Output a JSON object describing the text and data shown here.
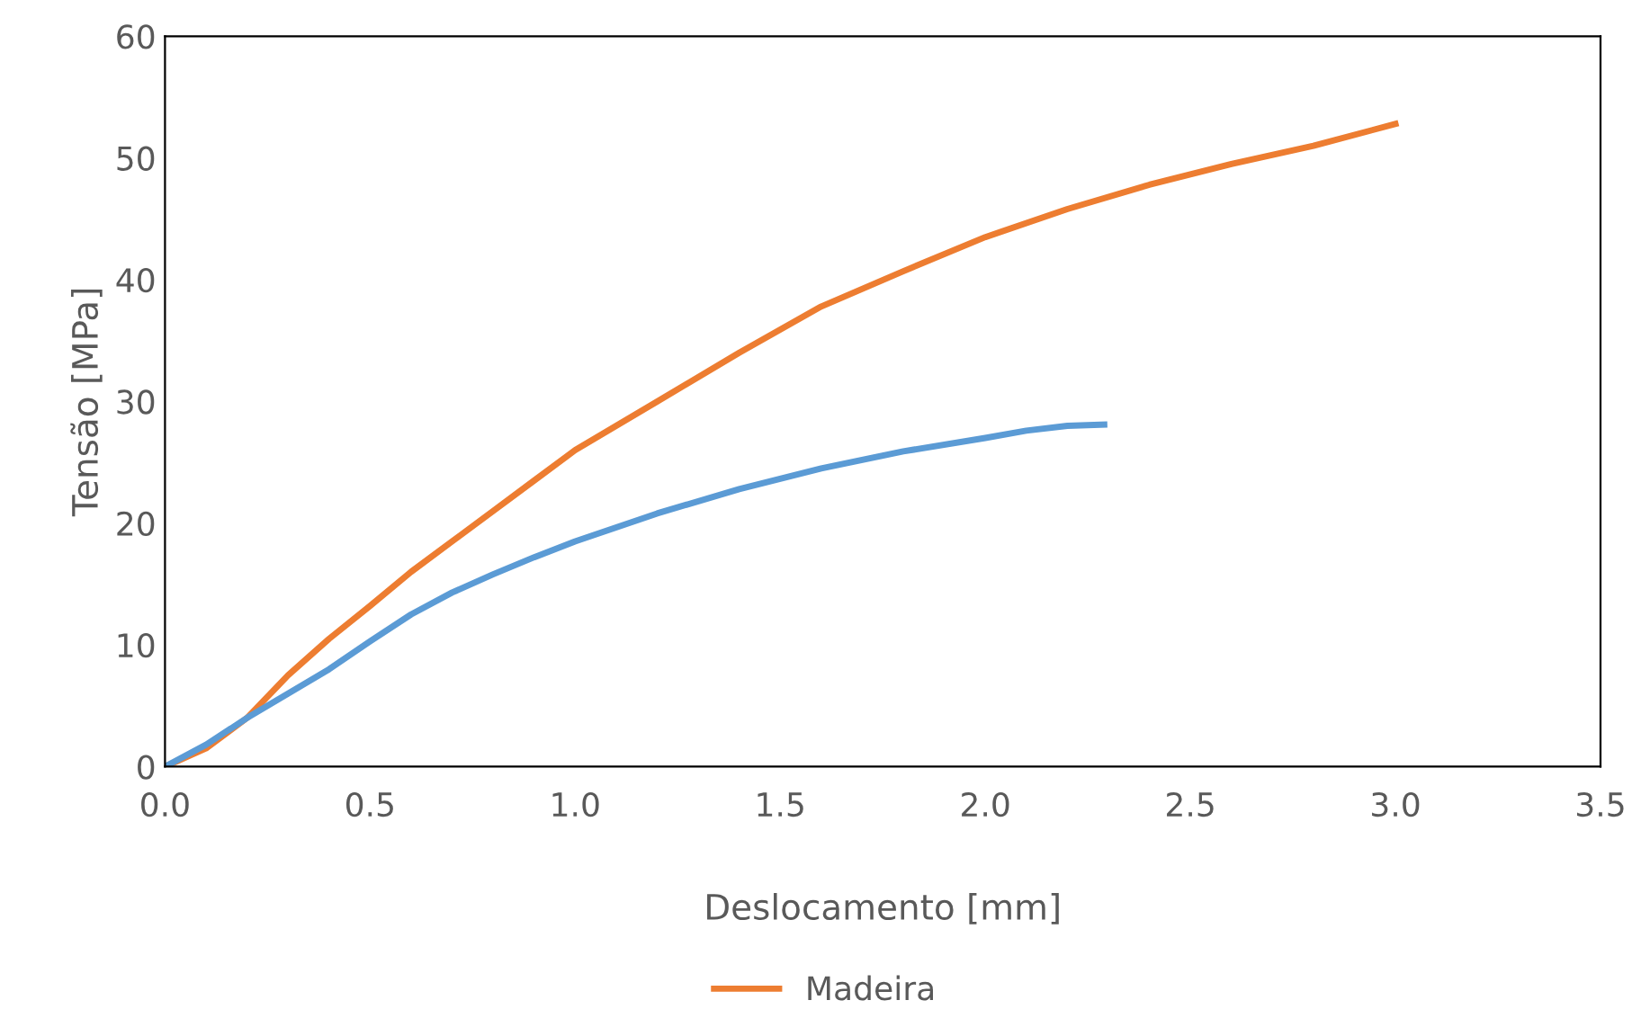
{
  "chart_data": {
    "type": "line",
    "xlabel": "Deslocamento [mm]",
    "ylabel": "Tensão [MPa]",
    "xlim": [
      0,
      3.5
    ],
    "xticks": [
      {
        "value": 0,
        "label": "0.0"
      },
      0.5,
      {
        "value": 1,
        "label": "1.0"
      },
      1.5,
      {
        "value": 2,
        "label": "2.0"
      },
      2.5,
      {
        "value": 3,
        "label": "3.0"
      },
      3.5
    ],
    "ylim": [
      0,
      60
    ],
    "yticks": [
      0,
      10,
      20,
      30,
      40,
      50,
      60
    ],
    "grid": false,
    "legend": "bottom",
    "marker": "none",
    "line_style": "solid",
    "series": [
      {
        "name": "Madeira",
        "color": "#ed7d31",
        "x": [
          0,
          0.1,
          0.2,
          0.3,
          0.4,
          0.5,
          0.6,
          0.7,
          0.8,
          0.9,
          1.0,
          1.2,
          1.4,
          1.6,
          1.8,
          2.0,
          2.2,
          2.4,
          2.6,
          2.8,
          3.0
        ],
        "values": [
          0,
          1.5,
          4,
          7.5,
          10.5,
          13.2,
          16,
          18.5,
          21,
          23.5,
          26,
          30,
          34,
          37.8,
          40.7,
          43.5,
          45.8,
          47.8,
          49.5,
          51,
          52.8
        ]
      },
      {
        "color": "#5b9bd5",
        "x": [
          0,
          0.1,
          0.2,
          0.3,
          0.4,
          0.5,
          0.6,
          0.7,
          0.8,
          0.9,
          1.0,
          1.2,
          1.4,
          1.6,
          1.8,
          2.0,
          2.1,
          2.2,
          2.29
        ],
        "values": [
          0,
          1.8,
          4,
          6,
          8,
          10.3,
          12.5,
          14.3,
          15.8,
          17.2,
          18.5,
          20.8,
          22.8,
          24.5,
          25.9,
          27,
          27.6,
          28,
          28.1
        ]
      }
    ]
  }
}
